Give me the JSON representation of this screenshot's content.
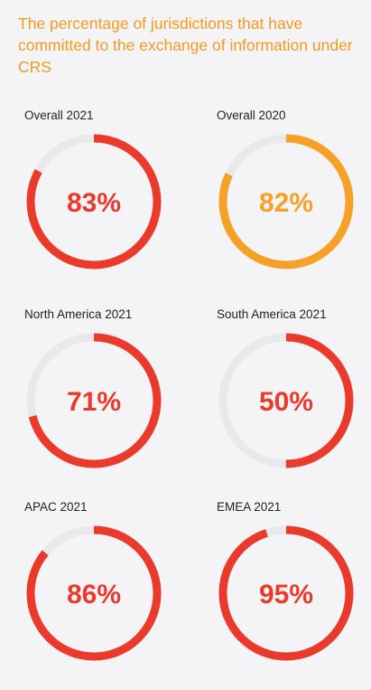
{
  "header": {
    "title": "The percentage of jurisdictions that have committed to the exchange of information under CRS"
  },
  "colors": {
    "red": "#ea3a2b",
    "orange": "#f5a026",
    "track": "#e9e8ea",
    "title": "#f29a1e"
  },
  "chart_data": {
    "type": "donut",
    "items": [
      {
        "label": "Overall 2021",
        "value": 83,
        "display": "83%",
        "color": "#ea3a2b"
      },
      {
        "label": "Overall 2020",
        "value": 82,
        "display": "82%",
        "color": "#f5a026"
      },
      {
        "label": "North America 2021",
        "value": 71,
        "display": "71%",
        "color": "#ea3a2b"
      },
      {
        "label": "South America 2021",
        "value": 50,
        "display": "50%",
        "color": "#ea3a2b"
      },
      {
        "label": "APAC 2021",
        "value": 86,
        "display": "86%",
        "color": "#ea3a2b"
      },
      {
        "label": "EMEA 2021",
        "value": 95,
        "display": "95%",
        "color": "#ea3a2b"
      }
    ],
    "max": 100
  }
}
